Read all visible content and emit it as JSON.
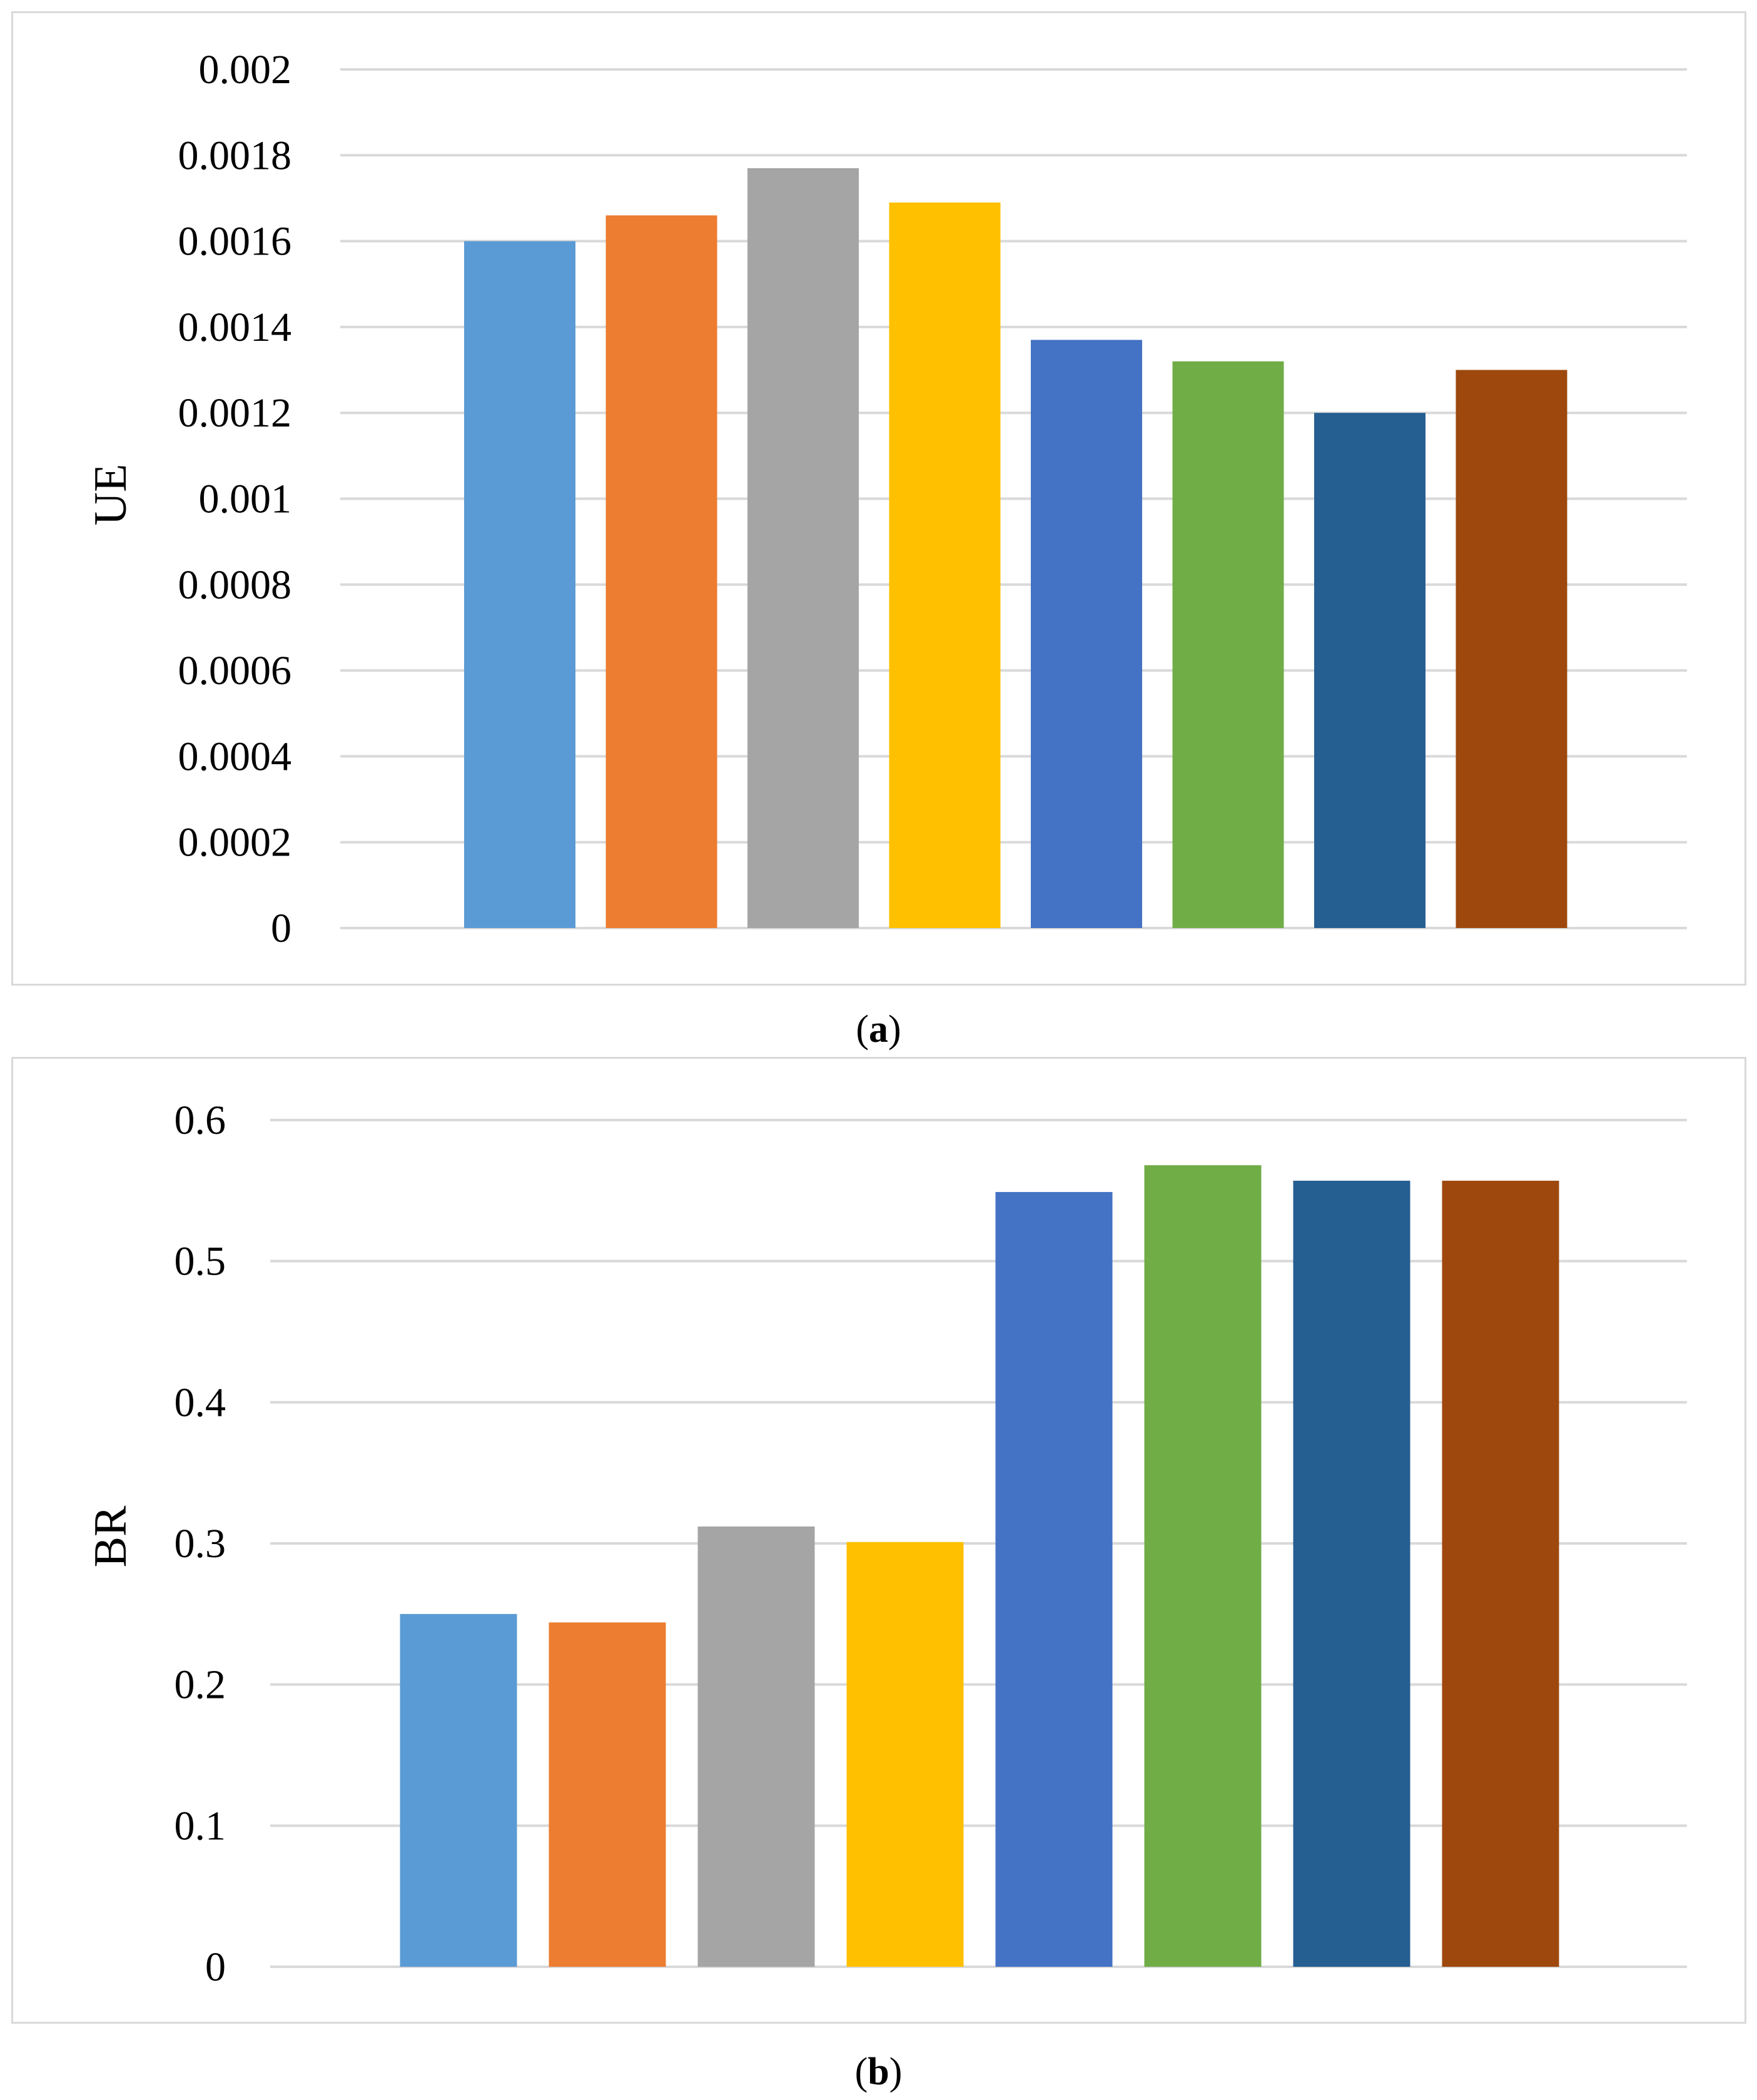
{
  "charts": [
    {
      "caption": {
        "open": "(",
        "letter": "a",
        "close": ")"
      },
      "chart_data": {
        "type": "bar",
        "ylabel": "UE",
        "ylim": [
          0,
          0.002
        ],
        "yticks": [
          "0",
          "0.0002",
          "0.0004",
          "0.0006",
          "0.0008",
          "0.001",
          "0.0012",
          "0.0014",
          "0.0016",
          "0.0018",
          "0.002"
        ],
        "grid": true,
        "values": [
          0.0016,
          0.00166,
          0.00177,
          0.00169,
          0.00137,
          0.00132,
          0.0012,
          0.0013
        ],
        "colors": [
          "#5b9bd5",
          "#ed7d31",
          "#a5a5a5",
          "#ffc000",
          "#4472c4",
          "#70ad47",
          "#255e91",
          "#9e480e"
        ]
      }
    },
    {
      "caption": {
        "open": "(",
        "letter": "b",
        "close": ")"
      },
      "chart_data": {
        "type": "bar",
        "ylabel": "BR",
        "ylim": [
          0,
          0.6
        ],
        "yticks": [
          "0",
          "0.1",
          "0.2",
          "0.3",
          "0.4",
          "0.5",
          "0.6"
        ],
        "grid": true,
        "values": [
          0.25,
          0.244,
          0.312,
          0.301,
          0.549,
          0.568,
          0.557,
          0.557
        ],
        "colors": [
          "#5b9bd5",
          "#ed7d31",
          "#a5a5a5",
          "#ffc000",
          "#4472c4",
          "#70ad47",
          "#255e91",
          "#9e480e"
        ]
      }
    }
  ]
}
